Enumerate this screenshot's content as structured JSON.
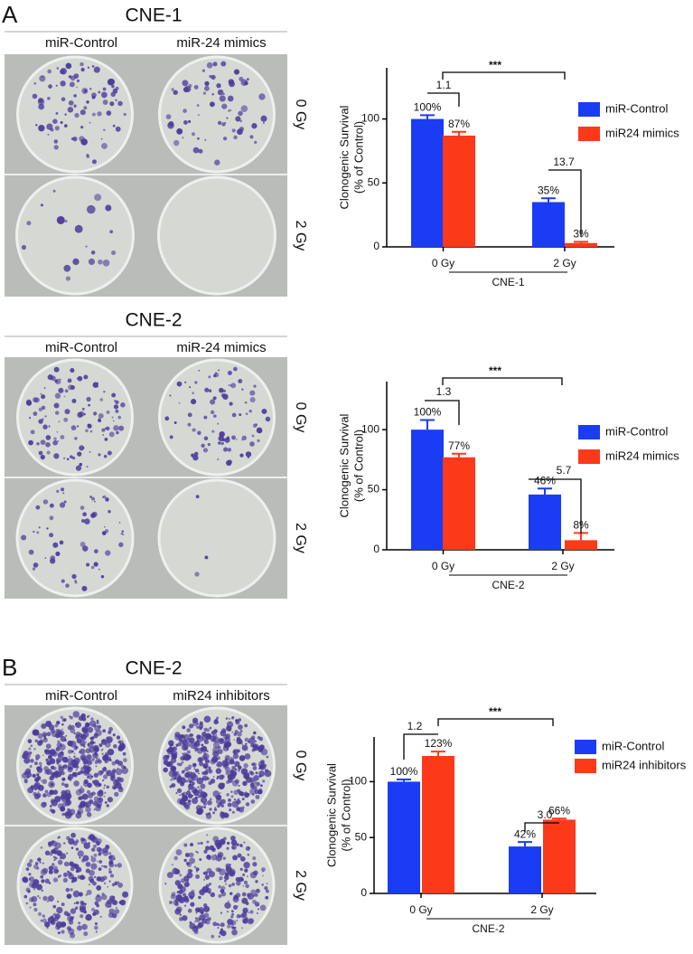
{
  "plate_panels": [
    {
      "panel": "A",
      "title": "CNE-1",
      "columns": [
        "miR-Control",
        "miR-24 mimics"
      ],
      "rows": [
        "0 Gy",
        "2 Gy"
      ]
    },
    {
      "title": "CNE-2",
      "columns": [
        "miR-Control",
        "miR-24 mimics"
      ],
      "rows": [
        "0 Gy",
        "2 Gy"
      ]
    },
    {
      "panel": "B",
      "title": "CNE-2",
      "columns": [
        "miR-Control",
        "miR24 inhibitors"
      ],
      "rows": [
        "0 Gy",
        "2 Gy"
      ]
    }
  ],
  "chart_data": [
    {
      "type": "bar",
      "ylabel": [
        "Clonogenic Survival",
        "(% of Control)"
      ],
      "xlabel": "CNE-1",
      "categories": [
        "0 Gy",
        "2 Gy"
      ],
      "ylim": [
        0,
        140
      ],
      "yticks": [
        0,
        50,
        100
      ],
      "series": [
        {
          "name": "miR-Control",
          "color": "#1a3cf5",
          "values": [
            100,
            35
          ],
          "errors": [
            3,
            3
          ],
          "value_labels": [
            "100%",
            "35%"
          ]
        },
        {
          "name": "miR24 mimics",
          "color": "#fc3a1a",
          "values": [
            87,
            3
          ],
          "errors": [
            3,
            1
          ],
          "value_labels": [
            "87%",
            "3%"
          ]
        }
      ],
      "annotations": [
        "***",
        "1.1",
        "13.7"
      ]
    },
    {
      "type": "bar",
      "ylabel": [
        "Clonogenic Survival",
        "(% of Control)"
      ],
      "xlabel": "CNE-2",
      "categories": [
        "0 Gy",
        "2 Gy"
      ],
      "ylim": [
        0,
        140
      ],
      "yticks": [
        0,
        50,
        100
      ],
      "series": [
        {
          "name": "miR-Control",
          "color": "#1a3cf5",
          "values": [
            100,
            46
          ],
          "errors": [
            8,
            5
          ],
          "value_labels": [
            "100%",
            "46%"
          ]
        },
        {
          "name": "miR24 mimics",
          "color": "#fc3a1a",
          "values": [
            77,
            8
          ],
          "errors": [
            3,
            6
          ],
          "value_labels": [
            "77%",
            "8%"
          ]
        }
      ],
      "annotations": [
        "***",
        "1.3",
        "5.7"
      ]
    },
    {
      "type": "bar",
      "ylabel": [
        "Clonogenic Survival",
        "(% of Control)"
      ],
      "xlabel": "CNE-2",
      "categories": [
        "0 Gy",
        "2 Gy"
      ],
      "ylim": [
        0,
        140
      ],
      "yticks": [
        0,
        50,
        100
      ],
      "series": [
        {
          "name": "miR-Control",
          "color": "#1a3cf5",
          "values": [
            100,
            42
          ],
          "errors": [
            2,
            4
          ],
          "value_labels": [
            "100%",
            "42%"
          ]
        },
        {
          "name": "miR24 inhibitors",
          "color": "#fc3a1a",
          "values": [
            123,
            66
          ],
          "errors": [
            4,
            1
          ],
          "value_labels": [
            "123%",
            "66%"
          ]
        }
      ],
      "annotations": [
        "***",
        "1.2",
        "3.0"
      ]
    }
  ]
}
